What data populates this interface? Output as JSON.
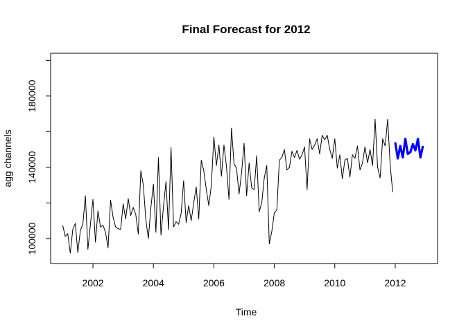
{
  "chart_data": {
    "type": "line",
    "title": "Final Forecast for 2012",
    "xlabel": "Time",
    "ylabel": "agg channels",
    "xlim": [
      2000.6,
      2013.4
    ],
    "ylim": [
      86000,
      204000
    ],
    "x_ticks": [
      2002,
      2004,
      2006,
      2008,
      2010,
      2012
    ],
    "x_tick_labels": [
      "2002",
      "2004",
      "2006",
      "2008",
      "2010",
      "2012"
    ],
    "y_ticks": [
      100000,
      140000,
      180000
    ],
    "y_tick_labels": [
      "100000",
      "140000",
      "180000"
    ],
    "grid": false,
    "colors": {
      "series_main": "#000000",
      "series_forecast": "#0000ff"
    },
    "series": [
      {
        "start_year": 2001,
        "frequency": 12,
        "values": [
          107500,
          101200,
          102800,
          91800,
          105200,
          108500,
          92100,
          104500,
          108200,
          124000,
          94000,
          108000,
          122000,
          98000,
          115500,
          106500,
          107500,
          103500,
          94800,
          121500,
          112000,
          106500,
          105500,
          105200,
          119500,
          111000,
          122500,
          113000,
          117500,
          113500,
          102500,
          138000,
          130000,
          110500,
          100000,
          117500,
          130500,
          103500,
          145500,
          102000,
          118000,
          132000,
          105000,
          151000,
          106500,
          109500,
          108000,
          114000,
          132500,
          109000,
          118500,
          110000,
          120000,
          129000,
          111000,
          144000,
          138000,
          127500,
          118500,
          130000,
          157000,
          141000,
          152500,
          135000,
          152500,
          140500,
          122000,
          162000,
          142000,
          139500,
          125000,
          137000,
          153500,
          124000,
          142500,
          128500,
          127500,
          146500,
          115000,
          120000,
          134000,
          141000,
          97000,
          104000,
          114500,
          116000,
          144000,
          145500,
          150000,
          138500,
          140000,
          149000,
          145500,
          149500,
          144500,
          147000,
          151500,
          127500,
          156000,
          150000,
          152500,
          156000,
          147500,
          158000,
          155500,
          158000,
          150000,
          145000,
          156000,
          139500,
          147000,
          133500,
          144000,
          145000,
          134500,
          147000,
          145000,
          152000,
          138500,
          142500,
          151500,
          142500,
          150000,
          141000,
          167000,
          140000,
          134000,
          156000,
          152000,
          167000,
          141000,
          126000
        ]
      },
      {
        "start_year": 2012,
        "frequency": 12,
        "values": [
          154000,
          145000,
          152000,
          145500,
          156000,
          147500,
          148500,
          153000,
          149500,
          156000,
          145500,
          152000
        ]
      }
    ]
  }
}
